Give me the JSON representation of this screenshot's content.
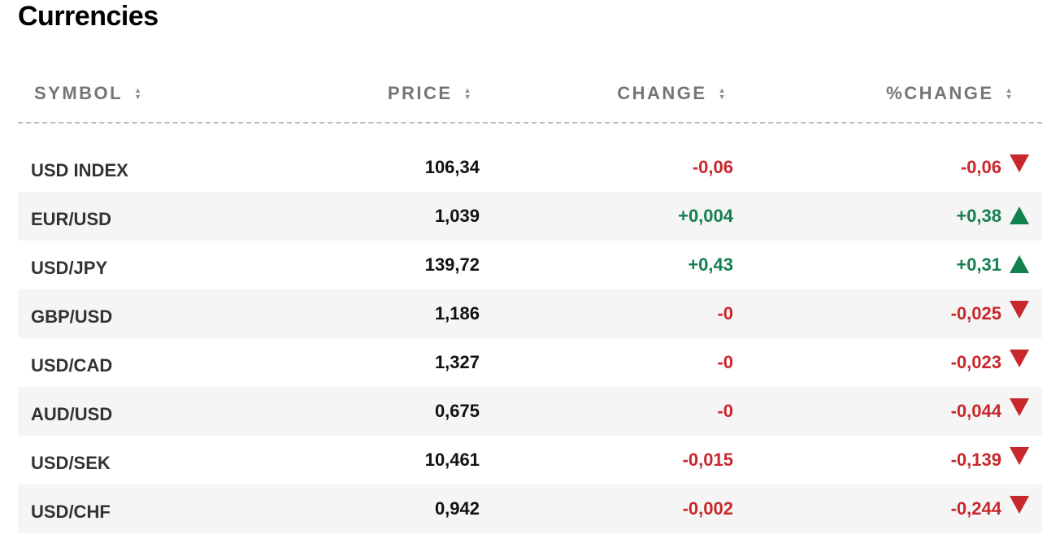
{
  "page_title": "Currencies",
  "columns": [
    {
      "label": "SYMBOL"
    },
    {
      "label": "PRICE"
    },
    {
      "label": "CHANGE"
    },
    {
      "label": "%CHANGE"
    }
  ],
  "colors": {
    "negative": "#c8272c",
    "positive": "#138050",
    "row_alt_bg": "#f5f5f5"
  },
  "rows": [
    {
      "symbol": "USD INDEX",
      "price": "106,34",
      "change": "-0,06",
      "pct_change": "-0,06",
      "direction": "down"
    },
    {
      "symbol": "EUR/USD",
      "price": "1,039",
      "change": "+0,004",
      "pct_change": "+0,38",
      "direction": "up"
    },
    {
      "symbol": "USD/JPY",
      "price": "139,72",
      "change": "+0,43",
      "pct_change": "+0,31",
      "direction": "up"
    },
    {
      "symbol": "GBP/USD",
      "price": "1,186",
      "change": "-0",
      "pct_change": "-0,025",
      "direction": "down"
    },
    {
      "symbol": "USD/CAD",
      "price": "1,327",
      "change": "-0",
      "pct_change": "-0,023",
      "direction": "down"
    },
    {
      "symbol": "AUD/USD",
      "price": "0,675",
      "change": "-0",
      "pct_change": "-0,044",
      "direction": "down"
    },
    {
      "symbol": "USD/SEK",
      "price": "10,461",
      "change": "-0,015",
      "pct_change": "-0,139",
      "direction": "down"
    },
    {
      "symbol": "USD/CHF",
      "price": "0,942",
      "change": "-0,002",
      "pct_change": "-0,244",
      "direction": "down"
    }
  ]
}
